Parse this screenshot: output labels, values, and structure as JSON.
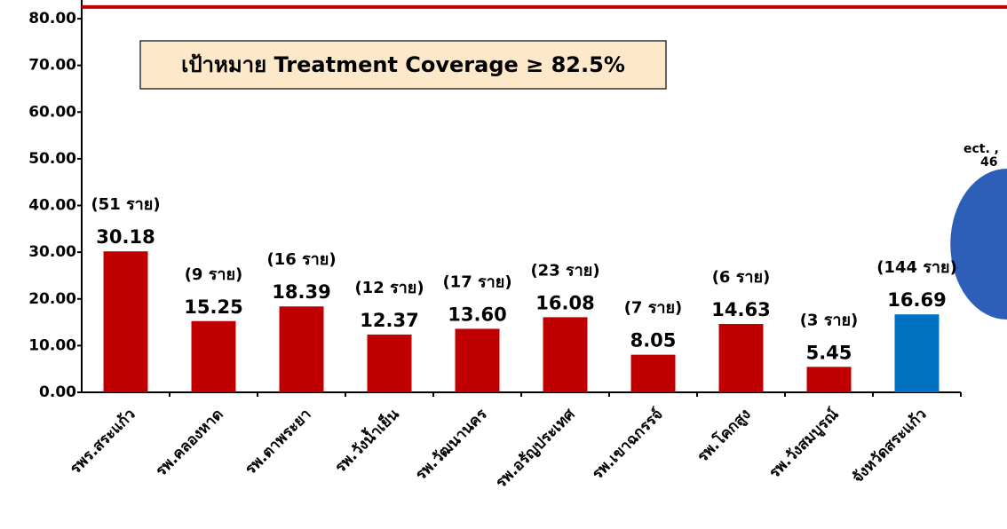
{
  "chart_data": {
    "type": "bar",
    "annotation": "เป้าหมาย Treatment Coverage ≥ 82.5%",
    "target": 82.5,
    "categories": [
      "รพร.สระแก้ว",
      "รพ.คลองหาด",
      "รพ.ตาพระยา",
      "รพ.วังน้ำเย็น",
      "รพ.วัฒนานคร",
      "รพ.อรัญประเทศ",
      "รพ.เขาฉกรรจ์",
      "รพ.โคกสูง",
      "รพ.วังสมบูรณ์",
      "จังหวัดสระแก้ว"
    ],
    "values": [
      30.18,
      15.25,
      18.39,
      12.37,
      13.6,
      16.08,
      8.05,
      14.63,
      5.45,
      16.69
    ],
    "value_labels": [
      "30.18",
      "15.25",
      "18.39",
      "12.37",
      "13.60",
      "16.08",
      "8.05",
      "14.63",
      "5.45",
      "16.69"
    ],
    "case_labels": [
      "(51 ราย)",
      "(9 ราย)",
      "(16 ราย)",
      "(12 ราย)",
      "(17 ราย)",
      "(23 ราย)",
      "(7 ราย)",
      "(6 ราย)",
      "(3 ราย)",
      "(144 ราย)"
    ],
    "colors": [
      "#c00000",
      "#c00000",
      "#c00000",
      "#c00000",
      "#c00000",
      "#c00000",
      "#c00000",
      "#c00000",
      "#c00000",
      "#0070c0"
    ],
    "target_color": "#c00000",
    "ylim": [
      0,
      84
    ],
    "yticks": [
      {
        "value": 0,
        "label": "0.00"
      },
      {
        "value": 10,
        "label": "10.00"
      },
      {
        "value": 20,
        "label": "20.00"
      },
      {
        "value": 30,
        "label": "30.00"
      },
      {
        "value": 40,
        "label": "40.00"
      },
      {
        "value": 50,
        "label": "50.00"
      },
      {
        "value": 60,
        "label": "60.00"
      },
      {
        "value": 70,
        "label": "70.00"
      },
      {
        "value": 80,
        "label": "80.00"
      }
    ],
    "side_text": [
      "ect. ,",
      "46"
    ]
  }
}
